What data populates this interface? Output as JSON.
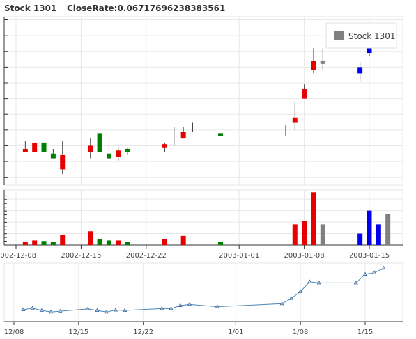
{
  "header": {
    "stock_label": "Stock 1301",
    "close_rate_label": "CloseRate:0.06717696238383561"
  },
  "legend": {
    "label": "Stock 1301",
    "color": "#808080",
    "placement": "top-right"
  },
  "colors": {
    "up": "#e60000",
    "down": "#008000",
    "flat": "#808080",
    "blue": "#0000ee",
    "line": "#4a86b8"
  },
  "chart_data": [
    {
      "type": "candlestick",
      "title": "",
      "x_ticks": [
        "2002-12-08",
        "2002-12-15",
        "2002-12-22",
        "2003-01-01",
        "2003-01-08",
        "2003-01-15"
      ],
      "grid": true,
      "legend": "top-right",
      "candles": [
        {
          "date": "2002-12-09",
          "open": 2.6,
          "close": 2.8,
          "high": 3.3,
          "low": 2.6,
          "color": "up"
        },
        {
          "date": "2002-12-10",
          "open": 2.6,
          "close": 3.2,
          "high": 3.2,
          "low": 2.6,
          "color": "up"
        },
        {
          "date": "2002-12-11",
          "open": 3.2,
          "close": 2.6,
          "high": 3.2,
          "low": 2.6,
          "color": "down"
        },
        {
          "date": "2002-12-12",
          "open": 2.5,
          "close": 2.2,
          "high": 2.8,
          "low": 2.2,
          "color": "down"
        },
        {
          "date": "2002-12-13",
          "open": 1.5,
          "close": 2.4,
          "high": 3.3,
          "low": 1.2,
          "color": "up"
        },
        {
          "date": "2002-12-16",
          "open": 2.6,
          "close": 3.0,
          "high": 3.5,
          "low": 2.2,
          "color": "up"
        },
        {
          "date": "2002-12-17",
          "open": 3.8,
          "close": 2.6,
          "high": 3.8,
          "low": 2.6,
          "color": "down"
        },
        {
          "date": "2002-12-18",
          "open": 2.5,
          "close": 2.2,
          "high": 3.0,
          "low": 2.2,
          "color": "down"
        },
        {
          "date": "2002-12-19",
          "open": 2.3,
          "close": 2.7,
          "high": 2.9,
          "low": 2.0,
          "color": "up"
        },
        {
          "date": "2002-12-20",
          "open": 2.8,
          "close": 2.6,
          "high": 2.9,
          "low": 2.4,
          "color": "down"
        },
        {
          "date": "2002-12-24",
          "open": 2.9,
          "close": 3.1,
          "high": 3.2,
          "low": 2.6,
          "color": "up"
        },
        {
          "date": "2002-12-25",
          "open": 4.2,
          "close": 4.2,
          "high": 4.2,
          "low": 3.0,
          "color": "flat"
        },
        {
          "date": "2002-12-26",
          "open": 3.5,
          "close": 3.9,
          "high": 4.2,
          "low": 3.5,
          "color": "up"
        },
        {
          "date": "2002-12-27",
          "open": 4.5,
          "close": 4.5,
          "high": 4.5,
          "low": 3.9,
          "color": "flat"
        },
        {
          "date": "2002-12-30",
          "open": 3.8,
          "close": 3.6,
          "high": 3.8,
          "low": 3.6,
          "color": "down"
        },
        {
          "date": "2003-01-06",
          "open": 3.8,
          "close": 3.8,
          "high": 4.3,
          "low": 3.6,
          "color": "flat"
        },
        {
          "date": "2003-01-07",
          "open": 4.5,
          "close": 4.8,
          "high": 5.8,
          "low": 4.0,
          "color": "up"
        },
        {
          "date": "2003-01-08",
          "open": 6.0,
          "close": 6.6,
          "high": 6.9,
          "low": 6.0,
          "color": "up"
        },
        {
          "date": "2003-01-09",
          "open": 7.8,
          "close": 8.4,
          "high": 9.2,
          "low": 7.6,
          "color": "up"
        },
        {
          "date": "2003-01-10",
          "open": 8.2,
          "close": 8.4,
          "high": 9.2,
          "low": 7.8,
          "color": "flat"
        },
        {
          "date": "2003-01-14",
          "open": 8.0,
          "close": 7.6,
          "high": 8.3,
          "low": 7.1,
          "color": "blue"
        },
        {
          "date": "2003-01-15",
          "open": 9.8,
          "close": 8.9,
          "high": 10.2,
          "low": 8.7,
          "color": "blue"
        },
        {
          "date": "2003-01-16",
          "open": 10.4,
          "close": 9.9,
          "high": 10.6,
          "low": 9.7,
          "color": "blue"
        }
      ]
    },
    {
      "type": "bar",
      "title": "",
      "categories": [
        "2002-12-09",
        "2002-12-10",
        "2002-12-11",
        "2002-12-12",
        "2002-12-13",
        "2002-12-16",
        "2002-12-17",
        "2002-12-18",
        "2002-12-19",
        "2002-12-20",
        "2002-12-24",
        "2002-12-26",
        "2002-12-30",
        "2003-01-07",
        "2003-01-08",
        "2003-01-09",
        "2003-01-10",
        "2003-01-14",
        "2003-01-15",
        "2003-01-16",
        "2003-01-17"
      ],
      "values": [
        0.25,
        0.4,
        0.35,
        0.3,
        0.9,
        1.2,
        0.5,
        0.4,
        0.4,
        0.3,
        0.5,
        0.8,
        0.3,
        1.8,
        2.1,
        4.6,
        1.8,
        1.0,
        3.0,
        1.8,
        2.7
      ],
      "colors": [
        "up",
        "up",
        "down",
        "down",
        "up",
        "up",
        "down",
        "down",
        "up",
        "down",
        "up",
        "up",
        "down",
        "up",
        "up",
        "up",
        "flat",
        "blue",
        "blue",
        "blue",
        "flat"
      ]
    },
    {
      "type": "line",
      "title": "",
      "x_ticks": [
        "12/08",
        "12/15",
        "12/22",
        "1/01",
        "1/08",
        "1/15"
      ],
      "x": [
        "2002-12-09",
        "2002-12-10",
        "2002-12-11",
        "2002-12-12",
        "2002-12-13",
        "2002-12-16",
        "2002-12-17",
        "2002-12-18",
        "2002-12-19",
        "2002-12-20",
        "2002-12-24",
        "2002-12-25",
        "2002-12-26",
        "2002-12-27",
        "2002-12-30",
        "2003-01-06",
        "2003-01-07",
        "2003-01-08",
        "2003-01-09",
        "2003-01-10",
        "2003-01-14",
        "2003-01-15",
        "2003-01-16",
        "2003-01-17"
      ],
      "y": [
        2.8,
        3.2,
        2.6,
        2.2,
        2.4,
        3.0,
        2.6,
        2.2,
        2.7,
        2.6,
        3.1,
        3.1,
        3.9,
        4.2,
        3.6,
        4.4,
        5.8,
        7.6,
        10.2,
        9.9,
        9.9,
        12.2,
        12.6,
        13.8
      ],
      "grid": true
    }
  ]
}
